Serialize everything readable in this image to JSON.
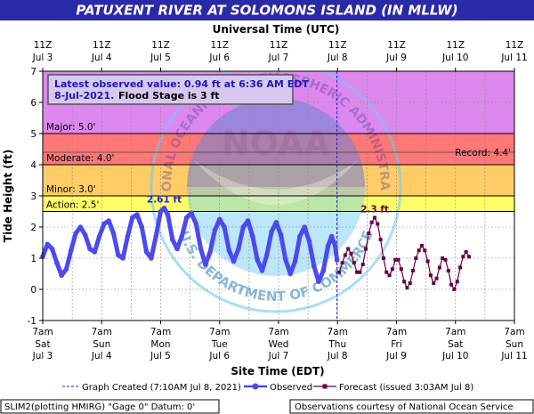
{
  "colors": {
    "title_bg": "#2a2aa8",
    "plot_bg": "#ffffff",
    "major": "#dd88ee",
    "moderate": "#ff7777",
    "minor": "#ffcc66",
    "action": "#ffff66",
    "observed": "#4a4af0",
    "forecast": "#660044",
    "peak_observed": "#2a2ac0",
    "peak_forecast": "#660044",
    "watermark": "#6fc9f2",
    "created_line": "#2a2ac0",
    "info_box_bg": "#d8c8ef",
    "info_box_text": "#1a1ab0"
  },
  "chart_data": {
    "type": "line",
    "title": "PATUXENT RIVER AT SOLOMONS ISLAND (IN MLLW)",
    "top_axis_label": "Universal Time (UTC)",
    "xlabel": "Site Time (EDT)",
    "ylabel": "Tide Height (ft)",
    "ylim": [
      -1,
      7
    ],
    "yticks": [
      -1,
      0,
      1,
      2,
      3,
      4,
      5,
      6,
      7
    ],
    "x_unit": "days since Jul 3 7am EDT",
    "xlim": [
      0,
      8
    ],
    "top_ticks": [
      {
        "line1": "11Z",
        "line2": "Jul 3"
      },
      {
        "line1": "11Z",
        "line2": "Jul 4"
      },
      {
        "line1": "11Z",
        "line2": "Jul 5"
      },
      {
        "line1": "11Z",
        "line2": "Jul 6"
      },
      {
        "line1": "11Z",
        "line2": "Jul 7"
      },
      {
        "line1": "11Z",
        "line2": "Jul 8"
      },
      {
        "line1": "11Z",
        "line2": "Jul 9"
      },
      {
        "line1": "11Z",
        "line2": "Jul 10"
      },
      {
        "line1": "11Z",
        "line2": "Jul 11"
      }
    ],
    "bottom_ticks": [
      {
        "time": "7am",
        "day": "Sat",
        "date": "Jul 3"
      },
      {
        "time": "7am",
        "day": "Sun",
        "date": "Jul 4"
      },
      {
        "time": "7am",
        "day": "Mon",
        "date": "Jul 5"
      },
      {
        "time": "7am",
        "day": "Tue",
        "date": "Jul 6"
      },
      {
        "time": "7am",
        "day": "Wed",
        "date": "Jul 7"
      },
      {
        "time": "7am",
        "day": "Thu",
        "date": "Jul 8"
      },
      {
        "time": "7am",
        "day": "Fri",
        "date": "Jul 9"
      },
      {
        "time": "7am",
        "day": "Sat",
        "date": "Jul 10"
      },
      {
        "time": "7am",
        "day": "Sun",
        "date": "Jul 11"
      }
    ],
    "flood_bands": [
      {
        "name": "major",
        "label": "Major: 5.0'",
        "from": 5.0,
        "to": 7.0
      },
      {
        "name": "moderate",
        "label": "Moderate: 4.0'",
        "from": 4.0,
        "to": 5.0
      },
      {
        "name": "minor",
        "label": "Minor: 3.0'",
        "from": 3.0,
        "to": 4.0
      },
      {
        "name": "action",
        "label": "Action: 2.5'",
        "from": 2.5,
        "to": 3.0
      }
    ],
    "record": {
      "label": "Record: 4.4'",
      "value": 4.4
    },
    "info_box": {
      "line1": "Latest observed value: 0.94 ft at 6:36 AM EDT",
      "line2_date": "8-Jul-2021.",
      "line2_flood": "Flood Stage is 3 ft"
    },
    "graph_created_x": 4.99,
    "series": [
      {
        "name": "Observed",
        "style": "solid-thick-dots",
        "points": [
          [
            0.0,
            1.05
          ],
          [
            0.08,
            1.45
          ],
          [
            0.16,
            1.3
          ],
          [
            0.24,
            0.85
          ],
          [
            0.32,
            0.45
          ],
          [
            0.4,
            0.65
          ],
          [
            0.48,
            1.25
          ],
          [
            0.56,
            1.8
          ],
          [
            0.64,
            2.0
          ],
          [
            0.72,
            1.75
          ],
          [
            0.8,
            1.3
          ],
          [
            0.88,
            1.2
          ],
          [
            0.96,
            1.7
          ],
          [
            1.04,
            2.1
          ],
          [
            1.12,
            2.2
          ],
          [
            1.2,
            1.8
          ],
          [
            1.28,
            1.1
          ],
          [
            1.36,
            1.0
          ],
          [
            1.44,
            1.7
          ],
          [
            1.52,
            2.3
          ],
          [
            1.6,
            2.4
          ],
          [
            1.68,
            2.0
          ],
          [
            1.76,
            1.2
          ],
          [
            1.84,
            1.0
          ],
          [
            1.92,
            1.7
          ],
          [
            2.0,
            2.5
          ],
          [
            2.06,
            2.61
          ],
          [
            2.12,
            2.4
          ],
          [
            2.2,
            1.6
          ],
          [
            2.28,
            1.3
          ],
          [
            2.36,
            1.7
          ],
          [
            2.44,
            2.3
          ],
          [
            2.52,
            2.45
          ],
          [
            2.6,
            2.1
          ],
          [
            2.68,
            1.3
          ],
          [
            2.76,
            0.8
          ],
          [
            2.84,
            1.2
          ],
          [
            2.92,
            1.9
          ],
          [
            3.0,
            2.25
          ],
          [
            3.08,
            2.0
          ],
          [
            3.16,
            1.25
          ],
          [
            3.24,
            0.9
          ],
          [
            3.32,
            1.3
          ],
          [
            3.4,
            2.0
          ],
          [
            3.48,
            2.2
          ],
          [
            3.56,
            1.7
          ],
          [
            3.64,
            0.95
          ],
          [
            3.72,
            0.6
          ],
          [
            3.8,
            1.1
          ],
          [
            3.88,
            1.85
          ],
          [
            3.96,
            2.15
          ],
          [
            4.04,
            1.75
          ],
          [
            4.12,
            0.95
          ],
          [
            4.2,
            0.5
          ],
          [
            4.28,
            0.9
          ],
          [
            4.36,
            1.7
          ],
          [
            4.44,
            2.0
          ],
          [
            4.52,
            1.55
          ],
          [
            4.6,
            0.75
          ],
          [
            4.68,
            0.25
          ],
          [
            4.76,
            0.6
          ],
          [
            4.84,
            1.4
          ],
          [
            4.9,
            1.7
          ],
          [
            4.96,
            1.4
          ],
          [
            4.99,
            0.94
          ]
        ]
      },
      {
        "name": "Forecast",
        "style": "thin-square-markers",
        "points": [
          [
            5.03,
            0.55
          ],
          [
            5.08,
            0.85
          ],
          [
            5.13,
            1.1
          ],
          [
            5.18,
            1.3
          ],
          [
            5.23,
            1.15
          ],
          [
            5.28,
            0.85
          ],
          [
            5.33,
            0.55
          ],
          [
            5.38,
            0.55
          ],
          [
            5.43,
            0.8
          ],
          [
            5.48,
            1.3
          ],
          [
            5.53,
            1.8
          ],
          [
            5.58,
            2.15
          ],
          [
            5.63,
            2.3
          ],
          [
            5.68,
            2.1
          ],
          [
            5.73,
            1.6
          ],
          [
            5.78,
            1.0
          ],
          [
            5.83,
            0.55
          ],
          [
            5.88,
            0.45
          ],
          [
            5.93,
            0.65
          ],
          [
            5.98,
            0.95
          ],
          [
            6.03,
            0.95
          ],
          [
            6.08,
            0.65
          ],
          [
            6.13,
            0.25
          ],
          [
            6.18,
            0.05
          ],
          [
            6.23,
            0.2
          ],
          [
            6.28,
            0.6
          ],
          [
            6.33,
            1.0
          ],
          [
            6.38,
            1.25
          ],
          [
            6.43,
            1.4
          ],
          [
            6.48,
            1.25
          ],
          [
            6.53,
            0.9
          ],
          [
            6.58,
            0.45
          ],
          [
            6.63,
            0.2
          ],
          [
            6.68,
            0.35
          ],
          [
            6.73,
            0.7
          ],
          [
            6.78,
            1.0
          ],
          [
            6.83,
            0.95
          ],
          [
            6.88,
            0.6
          ],
          [
            6.93,
            0.15
          ],
          [
            6.98,
            0.0
          ],
          [
            7.03,
            0.25
          ],
          [
            7.08,
            0.7
          ],
          [
            7.13,
            1.05
          ],
          [
            7.18,
            1.2
          ],
          [
            7.23,
            1.05
          ]
        ]
      }
    ],
    "peak_labels": [
      {
        "text": "2.61 ft",
        "x": 2.06,
        "y": 2.61,
        "series": "Observed"
      },
      {
        "text": "2.3 ft",
        "x": 5.63,
        "y": 2.3,
        "series": "Forecast"
      }
    ]
  },
  "watermark": {
    "letters": "NOAA",
    "top_text": "NATIONAL OCEANIC AND ATMOSPHERIC ADMINISTRATION",
    "bottom_text": "U.S. DEPARTMENT OF COMMERCE"
  },
  "legend": {
    "graph_created": "Graph Created (7:10AM Jul 8, 2021)",
    "observed": "Observed",
    "forecast": "Forecast (issued 3:03AM Jul 8)"
  },
  "footer": {
    "left": "SLIM2(plotting HMIRG) \"Gage 0\" Datum: 0'",
    "right": "Observations courtesy of National Ocean Service"
  }
}
